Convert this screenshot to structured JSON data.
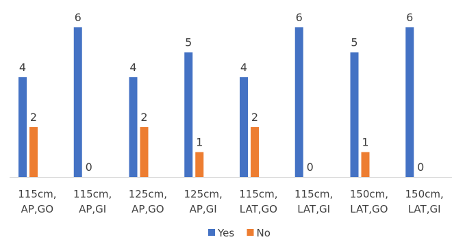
{
  "chart_data": {
    "type": "bar",
    "title": "",
    "xlabel": "",
    "ylabel": "",
    "ylim": [
      0,
      6
    ],
    "grid": false,
    "legend_position": "bottom",
    "categories": [
      [
        "115cm,",
        "AP,GO"
      ],
      [
        "115cm,",
        "AP,GI"
      ],
      [
        "125cm,",
        "AP,GO"
      ],
      [
        "125cm,",
        "AP,GI"
      ],
      [
        "115cm,",
        "LAT,GO"
      ],
      [
        "115cm,",
        "LAT,GI"
      ],
      [
        "150cm,",
        "LAT,GO"
      ],
      [
        "150cm,",
        "LAT,GI"
      ]
    ],
    "series": [
      {
        "name": "Yes",
        "color": "#4472C4",
        "values": [
          4,
          6,
          4,
          5,
          4,
          6,
          5,
          6
        ]
      },
      {
        "name": "No",
        "color": "#ED7D31",
        "values": [
          2,
          0,
          2,
          1,
          2,
          0,
          1,
          0
        ]
      }
    ]
  }
}
